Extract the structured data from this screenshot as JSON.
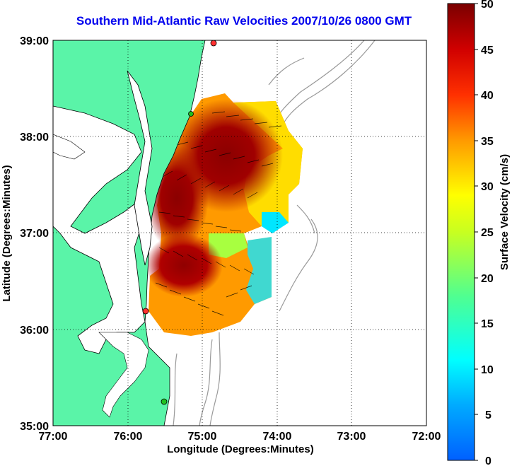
{
  "title": "Southern Mid-Atlantic Raw Velocities 2007/10/26 0800 GMT",
  "x_axis": {
    "label": "Longitude (Degrees:Minutes)",
    "ticks": [
      "77:00",
      "76:00",
      "75:00",
      "74:00",
      "73:00",
      "72:00"
    ]
  },
  "y_axis": {
    "label": "Latitude (Degrees:Minutes)",
    "ticks": [
      "39:00",
      "38:00",
      "37:00",
      "36:00",
      "35:00"
    ]
  },
  "colorbar": {
    "label": "Surface Velocity (cm/s)",
    "ticks": [
      "50",
      "45",
      "40",
      "35",
      "30",
      "25",
      "20",
      "15",
      "10",
      "5",
      "0"
    ],
    "min": 0,
    "max": 50,
    "colormap": "jet"
  },
  "colors": {
    "land": "#5af4a8",
    "water": "#ffffff",
    "title": "#0000ee",
    "bathymetry": "#999999",
    "grid": "#000000",
    "station": "#ff3030"
  }
}
